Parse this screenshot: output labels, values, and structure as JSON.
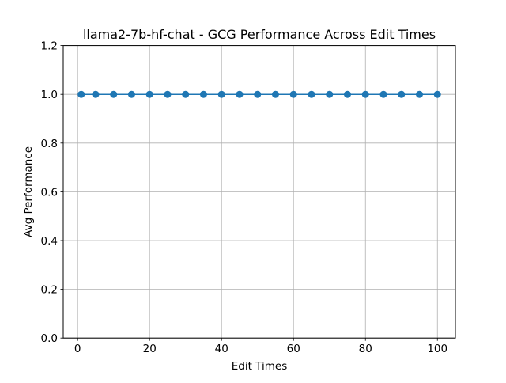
{
  "chart_data": {
    "type": "line",
    "title": "llama2-7b-hf-chat - GCG Performance Across Edit Times",
    "xlabel": "Edit Times",
    "ylabel": "Avg Performance",
    "xlim": [
      -4,
      105
    ],
    "ylim": [
      0.0,
      1.2
    ],
    "xticks": [
      0,
      20,
      40,
      60,
      80,
      100
    ],
    "xtick_labels": [
      "0",
      "20",
      "40",
      "60",
      "80",
      "100"
    ],
    "yticks": [
      0.0,
      0.2,
      0.4,
      0.6,
      0.8,
      1.0,
      1.2
    ],
    "ytick_labels": [
      "0.0",
      "0.2",
      "0.4",
      "0.6",
      "0.8",
      "1.0",
      "1.2"
    ],
    "grid": true,
    "series": [
      {
        "color": "#1f77b4",
        "marker": "circle",
        "x": [
          1,
          5,
          10,
          15,
          20,
          25,
          30,
          35,
          40,
          45,
          50,
          55,
          60,
          65,
          70,
          75,
          80,
          85,
          90,
          95,
          100
        ],
        "y": [
          1.0,
          1.0,
          1.0,
          1.0,
          1.0,
          1.0,
          1.0,
          1.0,
          1.0,
          1.0,
          1.0,
          1.0,
          1.0,
          1.0,
          1.0,
          1.0,
          1.0,
          1.0,
          1.0,
          1.0,
          1.0
        ]
      }
    ]
  }
}
